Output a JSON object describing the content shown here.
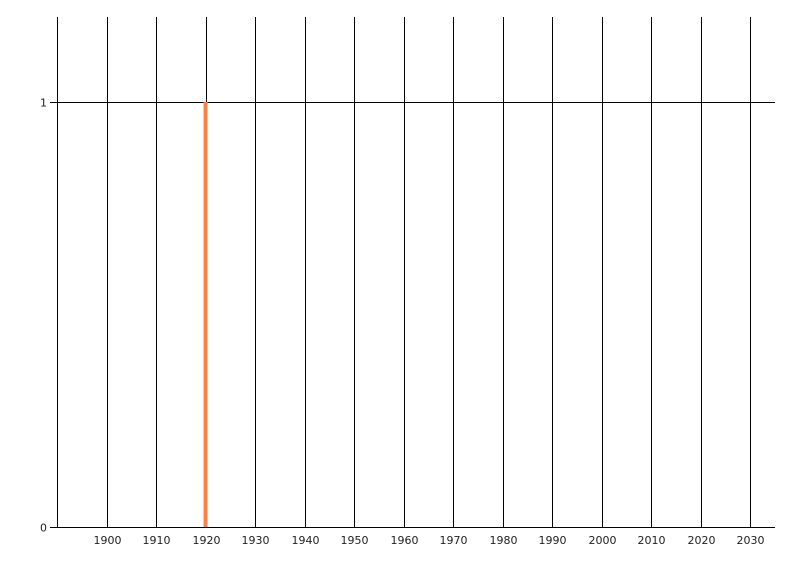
{
  "chart_data": {
    "type": "bar",
    "title": "",
    "xlabel": "",
    "ylabel": "",
    "x_ticks": [
      "1900",
      "1910",
      "1920",
      "1930",
      "1940",
      "1950",
      "1960",
      "1970",
      "1980",
      "1990",
      "2000",
      "2010",
      "2020",
      "2030"
    ],
    "y_ticks": [
      "0",
      "1"
    ],
    "xlim": [
      1890,
      2035
    ],
    "ylim": [
      0,
      1.2
    ],
    "grid": {
      "vertical": true,
      "horizontal": true
    },
    "series": [
      {
        "x": [
          1920
        ],
        "values": [
          1
        ],
        "color": "#FF7F3F"
      }
    ],
    "legend": "none",
    "gridline_color": "#000000"
  }
}
